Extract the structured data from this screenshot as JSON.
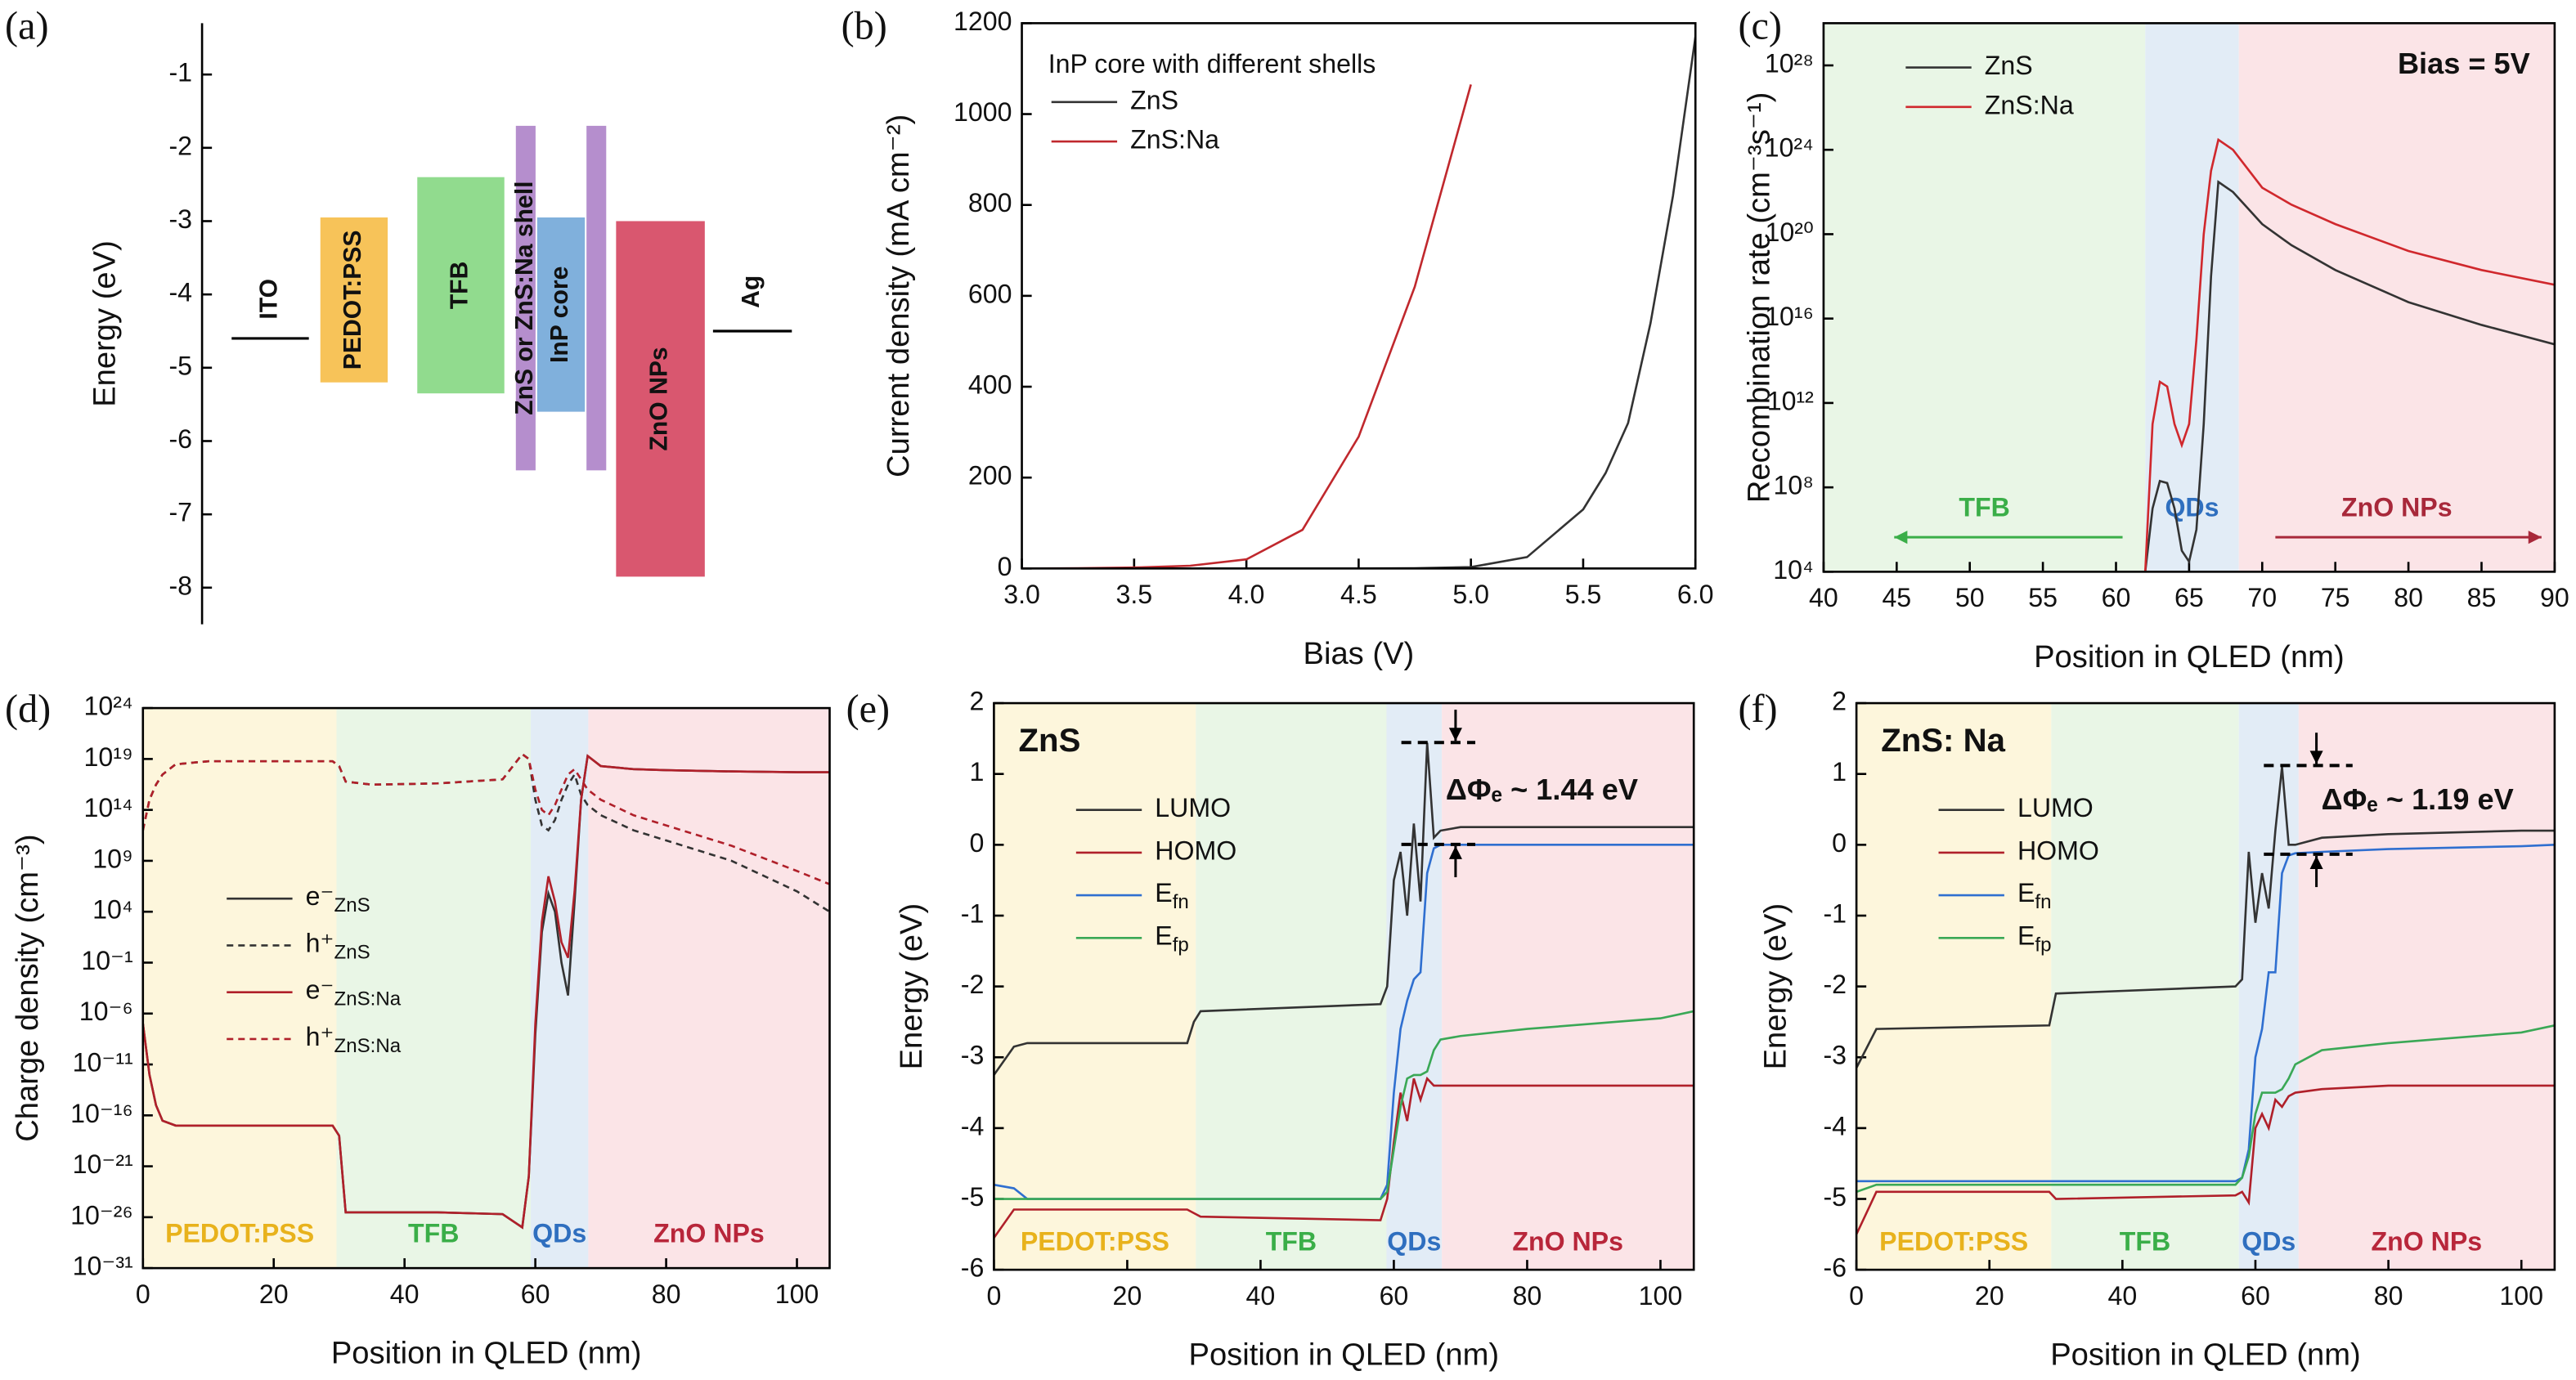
{
  "chart_data": [
    {
      "type": "band-diagram",
      "panel_label": "(a)",
      "y_label": "Energy (eV)",
      "ylim": [
        -8.5,
        -0.3
      ],
      "yticks": [
        -1,
        -2,
        -3,
        -4,
        -5,
        -6,
        -7,
        -8
      ],
      "layers": [
        {
          "name": "ITO",
          "level": -4.6,
          "color": "#000000"
        },
        {
          "name": "PEDOT:PSS",
          "top": -2.95,
          "bottom": -5.2,
          "color": "#f6b83c"
        },
        {
          "name": "TFB",
          "top": -2.4,
          "bottom": -5.35,
          "color": "#7ed57a"
        },
        {
          "name": "ZnS or ZnS:Na shell",
          "top": -1.7,
          "bottom": -6.4,
          "color": "#a87ac4"
        },
        {
          "name": "InP core",
          "top": -2.95,
          "bottom": -5.6,
          "color": "#6aa2d6"
        },
        {
          "name": "ZnO NPs",
          "top": -3.0,
          "bottom": -7.85,
          "color": "#d23a56"
        },
        {
          "name": "Ag",
          "level": -4.5,
          "color": "#000000"
        }
      ]
    },
    {
      "type": "line",
      "panel_label": "(b)",
      "x_label": "Bias (V)",
      "y_label": "Current density (mA cm⁻²)",
      "legend_title": "InP core with different shells",
      "xlim": [
        3,
        6
      ],
      "xticks": [
        {
          "value": 3,
          "label": "3.0"
        },
        {
          "value": 3.5,
          "label": "3.5"
        },
        {
          "value": 4,
          "label": "4.0"
        },
        {
          "value": 4.5,
          "label": "4.5"
        },
        {
          "value": 5,
          "label": "5.0"
        },
        {
          "value": 5.5,
          "label": "5.5"
        },
        {
          "value": 6,
          "label": "6.0"
        }
      ],
      "ylim": [
        0,
        1200
      ],
      "yticks": [
        0,
        200,
        400,
        600,
        800,
        1000,
        1200
      ],
      "x": [
        3,
        3.25,
        3.5,
        3.75,
        4,
        4.25,
        4.5,
        4.75,
        5,
        5.25,
        5.5,
        5.6,
        5.7,
        5.8,
        5.9,
        6
      ],
      "series": [
        {
          "name": "ZnS",
          "color": "#333333",
          "values": [
            0,
            0,
            0,
            0,
            0,
            0,
            0,
            0.5,
            3,
            25,
            130,
            210,
            320,
            540,
            820,
            1170
          ]
        },
        {
          "name": "ZnS:Na",
          "color": "#c0282d",
          "values": [
            0,
            0.5,
            2,
            6,
            20,
            85,
            290,
            620,
            1065,
            null,
            null,
            null,
            null,
            null,
            null,
            null
          ]
        }
      ]
    },
    {
      "type": "line",
      "panel_label": "(c)",
      "x_label": "Position in QLED (nm)",
      "y_label": "Recombination rate (cm⁻³s⁻¹)",
      "log_y": true,
      "annotations": [
        "Bias = 5V"
      ],
      "xlim": [
        40,
        90
      ],
      "xticks": [
        40,
        45,
        50,
        55,
        60,
        65,
        70,
        75,
        80,
        85,
        90
      ],
      "ylim": [
        10000.0,
        1e+30
      ],
      "yticks": [
        {
          "value": 10000.0,
          "label": "10⁴"
        },
        {
          "value": 100000000.0,
          "label": "10⁸"
        },
        {
          "value": 1000000000000.0,
          "label": "10¹²"
        },
        {
          "value": 1e+16,
          "label": "10¹⁶"
        },
        {
          "value": 1e+20,
          "label": "10²⁰"
        },
        {
          "value": 1e+24,
          "label": "10²⁴"
        },
        {
          "value": 1e+28,
          "label": "10²⁸"
        }
      ],
      "regions": [
        {
          "name": "TFB",
          "from": 40,
          "to": 62,
          "color": "#e9f6e6",
          "label_color": "#3aae48"
        },
        {
          "name": "QDs",
          "from": 62,
          "to": 68.4,
          "color": "#e2ecf6",
          "label_color": "#2f6fbf"
        },
        {
          "name": "ZnO NPs",
          "from": 68.4,
          "to": 90,
          "color": "#fbe4e7",
          "label_color": "#a8283a"
        }
      ],
      "x": [
        62,
        62.5,
        63,
        63.5,
        64,
        64.5,
        65,
        65.5,
        66,
        66.5,
        67,
        68,
        70,
        72,
        75,
        80,
        85,
        90
      ],
      "series": [
        {
          "name": "ZnS",
          "color": "#333333",
          "values": [
            10000.0,
            10000000.0,
            200000000.0,
            160000000.0,
            10000000.0,
            100000.0,
            30000.0,
            1000000.0,
            100000000000.0,
            1e+18,
            3e+22,
            1e+22,
            3e+20,
            3e+19,
            2e+18,
            6e+16,
            5000000000000000.0,
            600000000000000.0
          ]
        },
        {
          "name": "ZnS:Na",
          "color": "#d0282d",
          "values": [
            10000.0,
            100000000000.0,
            10000000000000.0,
            6000000000000.0,
            100000000000.0,
            10000000000.0,
            100000000000.0,
            1000000000000000.0,
            1e+20,
            1e+23,
            3e+24,
            1e+24,
            1.6e+22,
            2.5e+21,
            3e+20,
            1.6e+19,
            2e+18,
            4e+17
          ]
        }
      ]
    },
    {
      "type": "line",
      "panel_label": "(d)",
      "x_label": "Position in QLED (nm)",
      "y_label": "Charge density (cm⁻³)",
      "log_y": true,
      "xlim": [
        0,
        105
      ],
      "xticks": [
        0,
        20,
        40,
        60,
        80,
        100
      ],
      "ylim": [
        1e-31,
        1e+24
      ],
      "yticks": [
        {
          "value": 1e-31,
          "label": "10⁻³¹"
        },
        {
          "value": 1e-26,
          "label": "10⁻²⁶"
        },
        {
          "value": 1e-21,
          "label": "10⁻²¹"
        },
        {
          "value": 1e-16,
          "label": "10⁻¹⁶"
        },
        {
          "value": 1e-11,
          "label": "10⁻¹¹"
        },
        {
          "value": 1e-06,
          "label": "10⁻⁶"
        },
        {
          "value": 0.1,
          "label": "10⁻¹"
        },
        {
          "value": 10000.0,
          "label": "10⁴"
        },
        {
          "value": 1000000000.0,
          "label": "10⁹"
        },
        {
          "value": 100000000000000.0,
          "label": "10¹⁴"
        },
        {
          "value": 1e+19,
          "label": "10¹⁹"
        },
        {
          "value": 1e+24,
          "label": "10²⁴"
        }
      ],
      "regions": [
        {
          "name": "PEDOT:PSS",
          "from": 0,
          "to": 29.6,
          "color": "#fdf6dc",
          "label_color": "#e8b21c"
        },
        {
          "name": "TFB",
          "from": 29.6,
          "to": 59.3,
          "color": "#e9f6e6",
          "label_color": "#3aae48"
        },
        {
          "name": "QDs",
          "from": 59.3,
          "to": 68.1,
          "color": "#e2ecf6",
          "label_color": "#2f6fbf"
        },
        {
          "name": "ZnO NPs",
          "from": 68.1,
          "to": 105,
          "color": "#fbe4e7",
          "label_color": "#b8263a"
        }
      ],
      "x": [
        0,
        1,
        2,
        3,
        5,
        10,
        20,
        29,
        30,
        31,
        35,
        45,
        55,
        58,
        59,
        60,
        61,
        62,
        63,
        64,
        65,
        66,
        67,
        68,
        70,
        75,
        80,
        90,
        100,
        105
      ],
      "series": [
        {
          "name": "e⁻ZnS",
          "color": "#333333",
          "dash": false,
          "values": [
            1e-07,
            1e-12,
            1e-15,
            3e-17,
            1e-17,
            1e-17,
            1e-17,
            1e-17,
            1e-18,
            3e-26,
            3e-26,
            3e-26,
            2e-26,
            1e-27,
            1e-22,
            1e-08,
            100,
            600000.0,
            10000.0,
            0.1,
            6e-05,
            100000.0,
            1000000000000000.0,
            2e+19,
            2e+18,
            1e+18,
            8e+17,
            6e+17,
            5e+17,
            5e+17
          ]
        },
        {
          "name": "h⁺ZnS",
          "color": "#333333",
          "dash": true,
          "values": [
            1000000000000.0,
            1000000000000000.0,
            3e+16,
            3e+17,
            3e+18,
            6e+18,
            6e+18,
            6e+18,
            2e+18,
            6e+16,
            3e+16,
            4e+16,
            1e+17,
            3e+19,
            1e+19,
            1000000000000000.0,
            3000000000000.0,
            1000000000000.0,
            10000000000000.0,
            1000000000000000.0,
            3e+16,
            3e+17,
            3000000000000000.0,
            300000000000000.0,
            30000000000000.0,
            1000000000000.0,
            100000000000.0,
            1000000000.0,
            1000000.0,
            10000.0
          ]
        },
        {
          "name": "e⁻ZnS:Na",
          "color": "#b0202a",
          "dash": false,
          "values": [
            1e-07,
            1e-12,
            1e-15,
            3e-17,
            1e-17,
            1e-17,
            1e-17,
            1e-17,
            1e-18,
            3e-26,
            3e-26,
            3e-26,
            2e-26,
            1e-27,
            1e-22,
            1e-07,
            1000,
            30000000.0,
            100000.0,
            10,
            0.3,
            1000000.0,
            1000000000000000.0,
            2e+19,
            2e+18,
            1e+18,
            8e+17,
            6e+17,
            5e+17,
            5e+17
          ]
        },
        {
          "name": "h⁺ZnS:Na",
          "color": "#b0202a",
          "dash": true,
          "values": [
            1000000000000.0,
            1000000000000000.0,
            3e+16,
            3e+17,
            3e+18,
            6e+18,
            6e+18,
            6e+18,
            2e+18,
            6e+16,
            3e+16,
            4e+16,
            1e+17,
            3e+19,
            1e+19,
            1e+16,
            100000000000000.0,
            30000000000000.0,
            300000000000000.0,
            1e+16,
            3e+17,
            1e+18,
            1e+17,
            1e+16,
            1000000000000000.0,
            30000000000000.0,
            3000000000000.0,
            30000000000.0,
            100000000.0,
            5000000.0
          ]
        }
      ]
    },
    {
      "type": "line",
      "panel_label": "(e)",
      "x_label": "Position in QLED (nm)",
      "y_label": "Energy (eV)",
      "sample_label": "ZnS",
      "annotations": [
        "ΔΦₑ ~ 1.44 eV"
      ],
      "xlim": [
        0,
        105
      ],
      "xticks": [
        0,
        20,
        40,
        60,
        80,
        100
      ],
      "ylim": [
        -6,
        2
      ],
      "yticks": [
        -6,
        -5,
        -4,
        -3,
        -2,
        -1,
        0,
        1,
        2
      ],
      "regions": [
        {
          "name": "PEDOT:PSS",
          "from": 0,
          "to": 30.3,
          "color": "#fdf6dc",
          "label_color": "#e8b21c"
        },
        {
          "name": "TFB",
          "from": 30.3,
          "to": 58.9,
          "color": "#e9f6e6",
          "label_color": "#3aae48"
        },
        {
          "name": "QDs",
          "from": 58.9,
          "to": 67.2,
          "color": "#e2ecf6",
          "label_color": "#2f6fbf"
        },
        {
          "name": "ZnO NPs",
          "from": 67.2,
          "to": 105,
          "color": "#fbe4e7",
          "label_color": "#b8263a"
        }
      ],
      "x": [
        0,
        3,
        5,
        29,
        30,
        31,
        58,
        59,
        60,
        61,
        62,
        63,
        64,
        65,
        66,
        67,
        70,
        80,
        100,
        105
      ],
      "series": [
        {
          "name": "LUMO",
          "color": "#333333",
          "values": [
            -3.25,
            -2.85,
            -2.8,
            -2.8,
            -2.5,
            -2.35,
            -2.25,
            -2.0,
            -0.5,
            -0.1,
            -1.0,
            0.3,
            -0.8,
            1.44,
            0.1,
            0.2,
            0.25,
            0.25,
            0.25,
            0.25
          ]
        },
        {
          "name": "HOMO",
          "color": "#b0202a",
          "values": [
            -5.55,
            -5.15,
            -5.15,
            -5.15,
            -5.2,
            -5.25,
            -5.3,
            -5.0,
            -4.2,
            -3.5,
            -3.9,
            -3.3,
            -3.6,
            -3.3,
            -3.4,
            -3.4,
            -3.4,
            -3.4,
            -3.4,
            -3.4
          ]
        },
        {
          "name": "Efn",
          "color": "#2f6fd0",
          "values": [
            -4.8,
            -4.85,
            -5.0,
            -5.0,
            -5.0,
            -5.0,
            -5.0,
            -4.8,
            -3.5,
            -2.6,
            -2.2,
            -1.9,
            -1.8,
            -0.4,
            -0.05,
            0,
            0,
            0,
            0,
            0
          ]
        },
        {
          "name": "Efp",
          "color": "#3aa856",
          "values": [
            -5.0,
            -5.0,
            -5.0,
            -5.0,
            -5.0,
            -5.0,
            -5.0,
            -4.9,
            -4.3,
            -3.7,
            -3.3,
            -3.25,
            -3.25,
            -3.2,
            -2.9,
            -2.75,
            -2.7,
            -2.6,
            -2.45,
            -2.35
          ]
        }
      ]
    },
    {
      "type": "line",
      "panel_label": "(f)",
      "x_label": "Position in QLED (nm)",
      "y_label": "Energy (eV)",
      "sample_label": "ZnS: Na",
      "annotations": [
        "ΔΦₑ ~ 1.19 eV"
      ],
      "xlim": [
        0,
        105
      ],
      "xticks": [
        0,
        20,
        40,
        60,
        80,
        100
      ],
      "ylim": [
        -6,
        2
      ],
      "yticks": [
        -6,
        -5,
        -4,
        -3,
        -2,
        -1,
        0,
        1,
        2
      ],
      "regions": [
        {
          "name": "PEDOT:PSS",
          "from": 0,
          "to": 29.3,
          "color": "#fdf6dc",
          "label_color": "#e8b21c"
        },
        {
          "name": "TFB",
          "from": 29.3,
          "to": 57.5,
          "color": "#e9f6e6",
          "label_color": "#3aae48"
        },
        {
          "name": "QDs",
          "from": 57.5,
          "to": 66.5,
          "color": "#e2ecf6",
          "label_color": "#2f6fbf"
        },
        {
          "name": "ZnO NPs",
          "from": 66.5,
          "to": 105,
          "color": "#fbe4e7",
          "label_color": "#b8263a"
        }
      ],
      "x": [
        0,
        3,
        29,
        30,
        57,
        58,
        59,
        60,
        61,
        62,
        63,
        64,
        65,
        66,
        70,
        80,
        100,
        105
      ],
      "series": [
        {
          "name": "LUMO",
          "color": "#333333",
          "values": [
            -3.15,
            -2.6,
            -2.55,
            -2.1,
            -2.0,
            -1.9,
            -0.1,
            -1.1,
            -0.4,
            -0.9,
            0.2,
            1.1,
            0.0,
            0.0,
            0.1,
            0.15,
            0.2,
            0.2
          ]
        },
        {
          "name": "HOMO",
          "color": "#b0202a",
          "values": [
            -5.5,
            -4.9,
            -4.9,
            -5.0,
            -4.95,
            -4.9,
            -5.05,
            -4.0,
            -3.8,
            -4.0,
            -3.6,
            -3.7,
            -3.55,
            -3.5,
            -3.45,
            -3.4,
            -3.4,
            -3.4
          ]
        },
        {
          "name": "Efn",
          "color": "#2f6fd0",
          "values": [
            -4.75,
            -4.75,
            -4.75,
            -4.75,
            -4.75,
            -4.7,
            -4.3,
            -3.0,
            -2.6,
            -1.8,
            -1.8,
            -0.4,
            -0.15,
            -0.12,
            -0.1,
            -0.06,
            -0.02,
            0
          ]
        },
        {
          "name": "Efp",
          "color": "#3aa856",
          "values": [
            -4.9,
            -4.8,
            -4.8,
            -4.8,
            -4.8,
            -4.7,
            -4.4,
            -3.8,
            -3.5,
            -3.5,
            -3.5,
            -3.45,
            -3.3,
            -3.1,
            -2.9,
            -2.8,
            -2.65,
            -2.55
          ]
        }
      ]
    }
  ]
}
